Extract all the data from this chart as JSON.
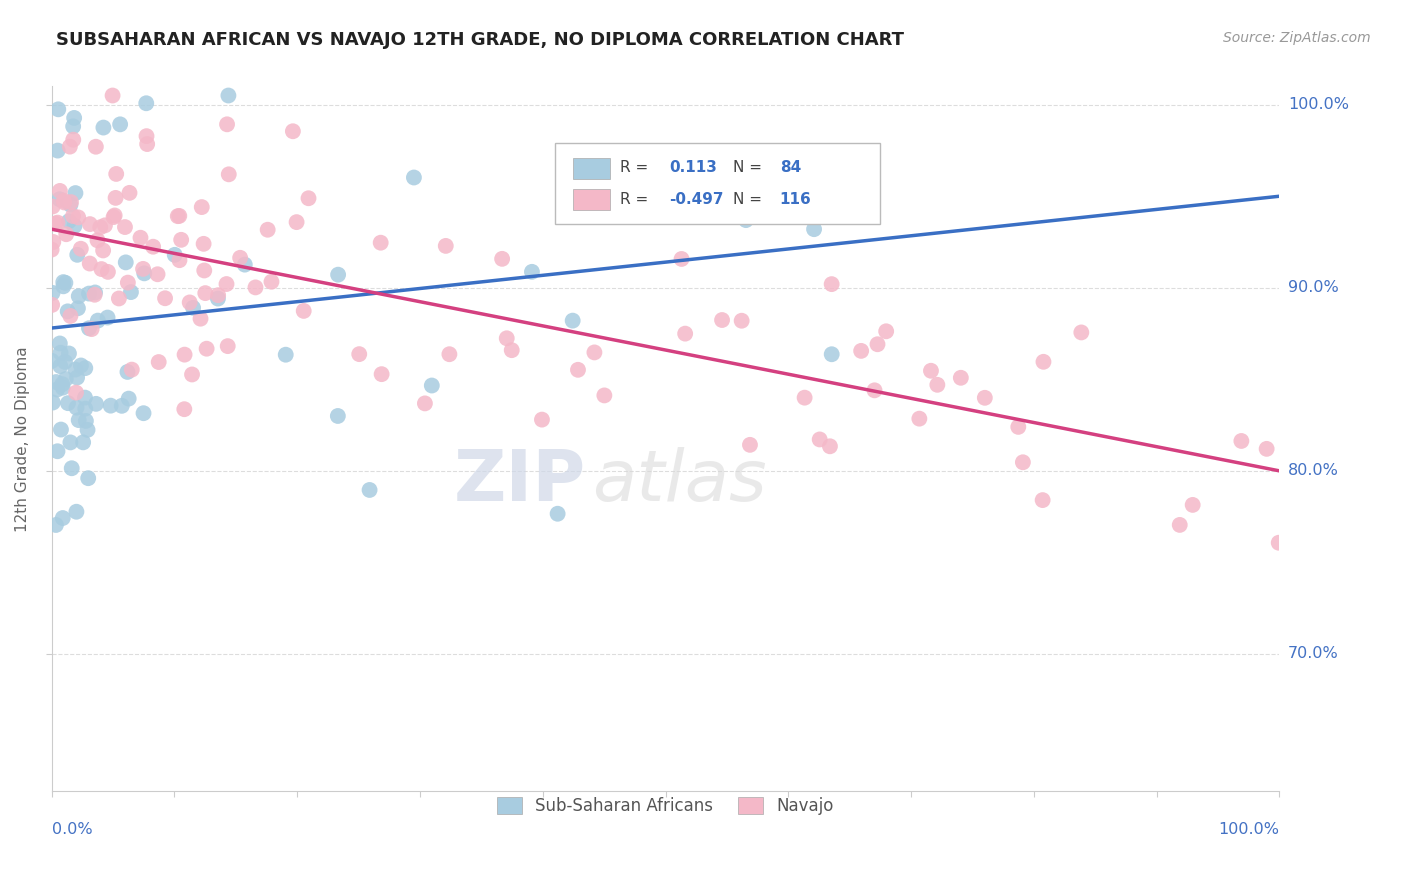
{
  "title": "SUBSAHARAN AFRICAN VS NAVAJO 12TH GRADE, NO DIPLOMA CORRELATION CHART",
  "source_text": "Source: ZipAtlas.com",
  "ylabel": "12th Grade, No Diploma",
  "legend_blue_label": "Sub-Saharan Africans",
  "legend_pink_label": "Navajo",
  "r_blue": 0.113,
  "n_blue": 84,
  "r_pink": -0.497,
  "n_pink": 116,
  "blue_color": "#a8cce0",
  "pink_color": "#f4b8c8",
  "blue_line_color": "#3a6fc4",
  "pink_line_color": "#d44080",
  "watermark_zip": "ZIP",
  "watermark_atlas": "atlas",
  "xlim": [
    0.0,
    1.0
  ],
  "ylim": [
    0.625,
    1.01
  ],
  "yticks": [
    0.7,
    0.8,
    0.9,
    1.0
  ],
  "ytick_labels": [
    "70.0%",
    "80.0%",
    "90.0%",
    "100.0%"
  ],
  "blue_line_x0": 0.0,
  "blue_line_y0": 0.878,
  "blue_line_x1": 1.0,
  "blue_line_y1": 0.95,
  "pink_line_x0": 0.0,
  "pink_line_y0": 0.932,
  "pink_line_x1": 1.0,
  "pink_line_y1": 0.8,
  "title_fontsize": 13,
  "source_fontsize": 10,
  "axis_label_color": "#4472c4",
  "ylabel_color": "#666666",
  "grid_color": "#dddddd",
  "spine_color": "#cccccc"
}
